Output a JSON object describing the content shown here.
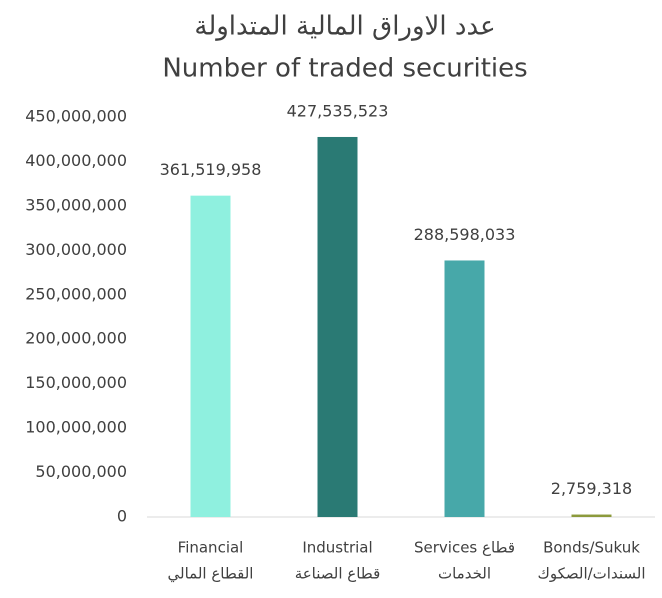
{
  "chart_data": {
    "type": "bar",
    "title": "عدد الاوراق المالية المتداولة",
    "subtitle": "Number of traded securities",
    "categories": [
      [
        "Financial",
        "القطاع المالي"
      ],
      [
        "Industrial",
        "قطاع الصناعة"
      ],
      [
        "Services قطاع",
        "الخدمات"
      ],
      [
        "Bonds/Sukuk",
        "السندات/الصكوك"
      ]
    ],
    "values": [
      361519958,
      427535523,
      288598033,
      2759318
    ],
    "value_labels": [
      "361,519,958",
      "427,535,523",
      "288,598,033",
      "2,759,318"
    ],
    "colors": [
      "#8ff0df",
      "#2a7a74",
      "#47a8a9",
      "#8c9a3c"
    ],
    "ylim": [
      0,
      450000000
    ],
    "yticks": [
      0,
      {
        "value": 50000000,
        "label": "50,000,000"
      },
      {
        "value": 100000000,
        "label": "100,000,000"
      },
      {
        "value": 150000000,
        "label": "150,000,000"
      },
      {
        "value": 200000000,
        "label": "200,000,000"
      },
      {
        "value": 250000000,
        "label": "250,000,000"
      },
      {
        "value": 300000000,
        "label": "300,000,000"
      },
      {
        "value": 350000000,
        "label": "350,000,000"
      },
      {
        "value": 400000000,
        "label": "400,000,000"
      },
      {
        "value": 450000000,
        "label": "450,000,000"
      }
    ],
    "grid": false
  }
}
